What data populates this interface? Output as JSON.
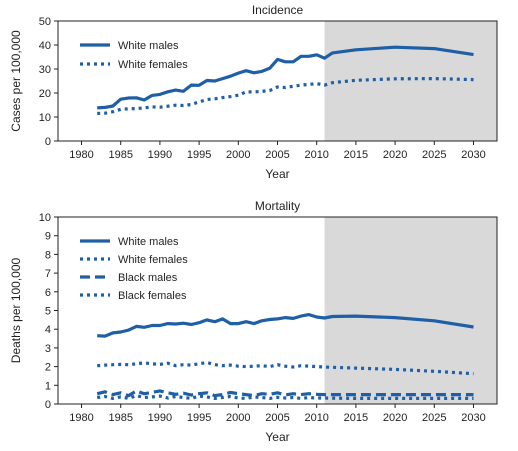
{
  "colors": {
    "line": "#1f5fa6",
    "shade": "#d9d9d9",
    "axis": "#231f20"
  },
  "chart_data": [
    {
      "type": "line",
      "title": "Incidence",
      "xlabel": "Year",
      "ylabel": "Cases per 100,000",
      "xlim": [
        1977,
        2033
      ],
      "ylim": [
        0,
        50
      ],
      "xticks": [
        1980,
        1985,
        1990,
        1995,
        2000,
        2005,
        2010,
        2015,
        2020,
        2025,
        2030
      ],
      "yticks": [
        0,
        10,
        20,
        30,
        40,
        50
      ],
      "shaded_region": [
        2011,
        2033
      ],
      "legend_position": "top-left",
      "series": [
        {
          "name": "White males",
          "style": "solid",
          "x": [
            1982,
            1983,
            1984,
            1985,
            1986,
            1987,
            1988,
            1989,
            1990,
            1991,
            1992,
            1993,
            1994,
            1995,
            1996,
            1997,
            1998,
            1999,
            2000,
            2001,
            2002,
            2003,
            2004,
            2005,
            2006,
            2007,
            2008,
            2009,
            2010,
            2011,
            2012,
            2015,
            2020,
            2025,
            2030
          ],
          "y": [
            13.8,
            14.0,
            14.6,
            17.4,
            17.9,
            18.0,
            17.1,
            19.0,
            19.4,
            20.5,
            21.2,
            20.7,
            23.3,
            23.2,
            25.2,
            25.0,
            26.0,
            27.0,
            28.3,
            29.3,
            28.4,
            29.0,
            30.3,
            34.0,
            33.0,
            33.0,
            35.3,
            35.3,
            35.9,
            34.5,
            36.7,
            38.0,
            39.1,
            38.5,
            36.0
          ]
        },
        {
          "name": "White females",
          "style": "dotted",
          "x": [
            1982,
            1983,
            1984,
            1985,
            1986,
            1987,
            1988,
            1989,
            1990,
            1991,
            1992,
            1993,
            1994,
            1995,
            1996,
            1997,
            1998,
            1999,
            2000,
            2001,
            2002,
            2003,
            2004,
            2005,
            2006,
            2007,
            2008,
            2009,
            2010,
            2011,
            2012,
            2015,
            2020,
            2025,
            2030
          ],
          "y": [
            11.5,
            11.6,
            12.2,
            13.2,
            13.4,
            13.5,
            13.8,
            14.2,
            14.1,
            14.5,
            14.9,
            14.8,
            15.2,
            16.3,
            17.3,
            17.6,
            18.1,
            18.5,
            19.1,
            20.5,
            20.4,
            20.7,
            21.0,
            22.5,
            22.3,
            22.8,
            23.3,
            23.6,
            23.9,
            23.3,
            24.3,
            25.3,
            25.9,
            26.0,
            25.6
          ]
        }
      ]
    },
    {
      "type": "line",
      "title": "Mortality",
      "xlabel": "Year",
      "ylabel": "Deaths per 100,000",
      "xlim": [
        1977,
        2033
      ],
      "ylim": [
        0,
        10
      ],
      "xticks": [
        1980,
        1985,
        1990,
        1995,
        2000,
        2005,
        2010,
        2015,
        2020,
        2025,
        2030
      ],
      "yticks": [
        0,
        1,
        2,
        3,
        4,
        5,
        6,
        7,
        8,
        9,
        10
      ],
      "shaded_region": [
        2011,
        2033
      ],
      "legend_position": "top-left",
      "series": [
        {
          "name": "White males",
          "style": "solid",
          "x": [
            1982,
            1983,
            1984,
            1985,
            1986,
            1987,
            1988,
            1989,
            1990,
            1991,
            1992,
            1993,
            1994,
            1995,
            1996,
            1997,
            1998,
            1999,
            2000,
            2001,
            2002,
            2003,
            2004,
            2005,
            2006,
            2007,
            2008,
            2009,
            2010,
            2011,
            2012,
            2015,
            2020,
            2025,
            2030
          ],
          "y": [
            3.65,
            3.63,
            3.8,
            3.85,
            3.95,
            4.15,
            4.1,
            4.2,
            4.2,
            4.3,
            4.28,
            4.32,
            4.25,
            4.35,
            4.5,
            4.4,
            4.55,
            4.3,
            4.3,
            4.4,
            4.3,
            4.45,
            4.52,
            4.55,
            4.62,
            4.58,
            4.7,
            4.78,
            4.65,
            4.6,
            4.68,
            4.7,
            4.62,
            4.45,
            4.12
          ]
        },
        {
          "name": "White females",
          "style": "dotted",
          "x": [
            1982,
            1983,
            1984,
            1985,
            1986,
            1987,
            1988,
            1989,
            1990,
            1991,
            1992,
            1993,
            1994,
            1995,
            1996,
            1997,
            1998,
            1999,
            2000,
            2001,
            2002,
            2003,
            2004,
            2005,
            2006,
            2007,
            2008,
            2009,
            2010,
            2011,
            2012,
            2015,
            2020,
            2025,
            2030
          ],
          "y": [
            2.05,
            2.08,
            2.1,
            2.12,
            2.1,
            2.15,
            2.2,
            2.15,
            2.12,
            2.18,
            2.05,
            2.1,
            2.08,
            2.15,
            2.22,
            2.1,
            2.05,
            2.08,
            2.02,
            2.0,
            2.02,
            2.05,
            2.0,
            2.1,
            2.02,
            1.98,
            2.05,
            2.02,
            2.0,
            1.98,
            1.96,
            1.92,
            1.85,
            1.75,
            1.62
          ]
        },
        {
          "name": "Black males",
          "style": "dashed",
          "x": [
            1982,
            1983,
            1984,
            1985,
            1986,
            1987,
            1988,
            1989,
            1990,
            1991,
            1992,
            1993,
            1994,
            1995,
            1996,
            1997,
            1998,
            1999,
            2000,
            2001,
            2002,
            2003,
            2004,
            2005,
            2006,
            2007,
            2008,
            2009,
            2010,
            2011,
            2012,
            2015,
            2020,
            2025,
            2030
          ],
          "y": [
            0.55,
            0.65,
            0.5,
            0.6,
            0.45,
            0.7,
            0.55,
            0.62,
            0.7,
            0.6,
            0.52,
            0.58,
            0.48,
            0.55,
            0.6,
            0.45,
            0.5,
            0.62,
            0.55,
            0.5,
            0.45,
            0.55,
            0.52,
            0.6,
            0.48,
            0.55,
            0.5,
            0.55,
            0.52,
            0.5,
            0.5,
            0.5,
            0.5,
            0.5,
            0.5
          ]
        },
        {
          "name": "Black females",
          "style": "dotted",
          "x": [
            1982,
            1983,
            1984,
            1985,
            1986,
            1987,
            1988,
            1989,
            1990,
            1991,
            1992,
            1993,
            1994,
            1995,
            1996,
            1997,
            1998,
            1999,
            2000,
            2001,
            2002,
            2003,
            2004,
            2005,
            2006,
            2007,
            2008,
            2009,
            2010,
            2011,
            2012,
            2015,
            2020,
            2025,
            2030
          ],
          "y": [
            0.35,
            0.4,
            0.3,
            0.38,
            0.3,
            0.45,
            0.35,
            0.38,
            0.42,
            0.32,
            0.4,
            0.35,
            0.3,
            0.42,
            0.38,
            0.3,
            0.35,
            0.4,
            0.32,
            0.3,
            0.38,
            0.35,
            0.3,
            0.36,
            0.32,
            0.35,
            0.3,
            0.34,
            0.32,
            0.32,
            0.31,
            0.3,
            0.3,
            0.3,
            0.3
          ]
        }
      ]
    }
  ]
}
